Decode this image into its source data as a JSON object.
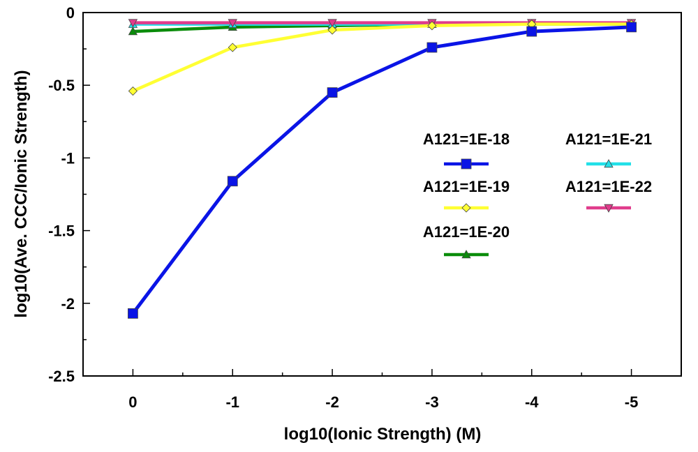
{
  "chart_data": {
    "type": "line",
    "title": "",
    "xlabel": "log10(Ionic Strength)  (M)",
    "ylabel": "log10(Ave. CCC/Ionic Strength)",
    "x": [
      0,
      -1,
      -2,
      -3,
      -4,
      -5
    ],
    "x_tick_labels": [
      "0",
      "-1",
      "-2",
      "-3",
      "-4",
      "-5"
    ],
    "xlim": [
      0.5,
      -5.5
    ],
    "ylim": [
      -2.5,
      0
    ],
    "y_ticks": [
      0,
      -0.5,
      -1,
      -1.5,
      -2,
      -2.5
    ],
    "y_tick_labels": [
      "0",
      "-0.5",
      "-1",
      "-1.5",
      "-2",
      "-2.5"
    ],
    "grid": false,
    "legend_position": "center-right",
    "series": [
      {
        "name": "A121=1E-18",
        "color": "#0a14e6",
        "marker": "square",
        "values": [
          -2.07,
          -1.16,
          -0.55,
          -0.24,
          -0.13,
          -0.1
        ]
      },
      {
        "name": "A121=1E-19",
        "color": "#ffff33",
        "marker": "diamond",
        "values": [
          -0.54,
          -0.24,
          -0.12,
          -0.09,
          -0.08,
          -0.08
        ]
      },
      {
        "name": "A121=1E-20",
        "color": "#0a8c0a",
        "marker": "triangle-up",
        "values": [
          -0.13,
          -0.1,
          -0.09,
          -0.08,
          -0.08,
          -0.08
        ]
      },
      {
        "name": "A121=1E-21",
        "color": "#22e0e8",
        "marker": "triangle-up",
        "values": [
          -0.08,
          -0.08,
          -0.08,
          -0.08,
          -0.08,
          -0.08
        ]
      },
      {
        "name": "A121=1E-22",
        "color": "#e03c8c",
        "marker": "triangle-down",
        "values": [
          -0.07,
          -0.07,
          -0.07,
          -0.07,
          -0.07,
          -0.07
        ]
      }
    ]
  }
}
